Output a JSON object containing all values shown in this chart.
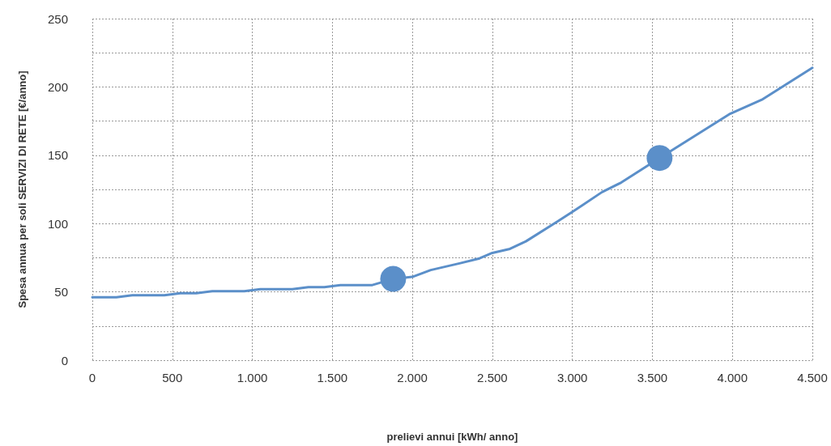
{
  "chart_data": {
    "type": "line",
    "xlabel": "prelievi annui [kWh/ anno]",
    "ylabel": "Spesa annua per soli SERVIZI DI RETE [€/anno]",
    "series": [
      {
        "color": "#5b8fc9",
        "marker": "none",
        "x": [
          0,
          150,
          250,
          450,
          550,
          650,
          750,
          950,
          1050,
          1250,
          1350,
          1450,
          1550,
          1750,
          1880,
          2000,
          2115,
          2300,
          2420,
          2500,
          2610,
          2710,
          2900,
          3000,
          3185,
          3305,
          3545,
          3980,
          4190,
          4500
        ],
        "values": [
          46,
          46,
          47.5,
          47.5,
          49,
          49,
          50.5,
          50.5,
          52,
          52,
          53.5,
          53.5,
          55,
          55,
          59.5,
          61,
          66,
          71,
          74.5,
          78.5,
          81.5,
          87,
          101,
          108.5,
          123,
          130,
          148,
          180,
          191,
          214
        ]
      },
      {
        "type": "scatter",
        "color": "#5b8fc9",
        "marker": "circle",
        "x": [
          1880,
          3545
        ],
        "values": [
          59.5,
          148
        ]
      }
    ],
    "xlim": [
      0,
      4500
    ],
    "xticks": [
      0,
      500,
      {
        "value": 1000,
        "label": "1.000"
      },
      {
        "value": 1500,
        "label": "1.500"
      },
      {
        "value": 2000,
        "label": "2.000"
      },
      {
        "value": 2500,
        "label": "2.500"
      },
      {
        "value": 3000,
        "label": "3.000"
      },
      {
        "value": 3500,
        "label": "3.500"
      },
      {
        "value": 4000,
        "label": "4.000"
      },
      {
        "value": 4500,
        "label": "4.500"
      }
    ],
    "ylim": [
      0,
      250
    ],
    "yticks": [
      0,
      {
        "value": 25,
        "label": null
      },
      50,
      {
        "value": 75,
        "label": null
      },
      100,
      {
        "value": 125,
        "label": null
      },
      150,
      {
        "value": 175,
        "label": null
      },
      200,
      {
        "value": 225,
        "label": null
      },
      250
    ],
    "grid": true
  }
}
